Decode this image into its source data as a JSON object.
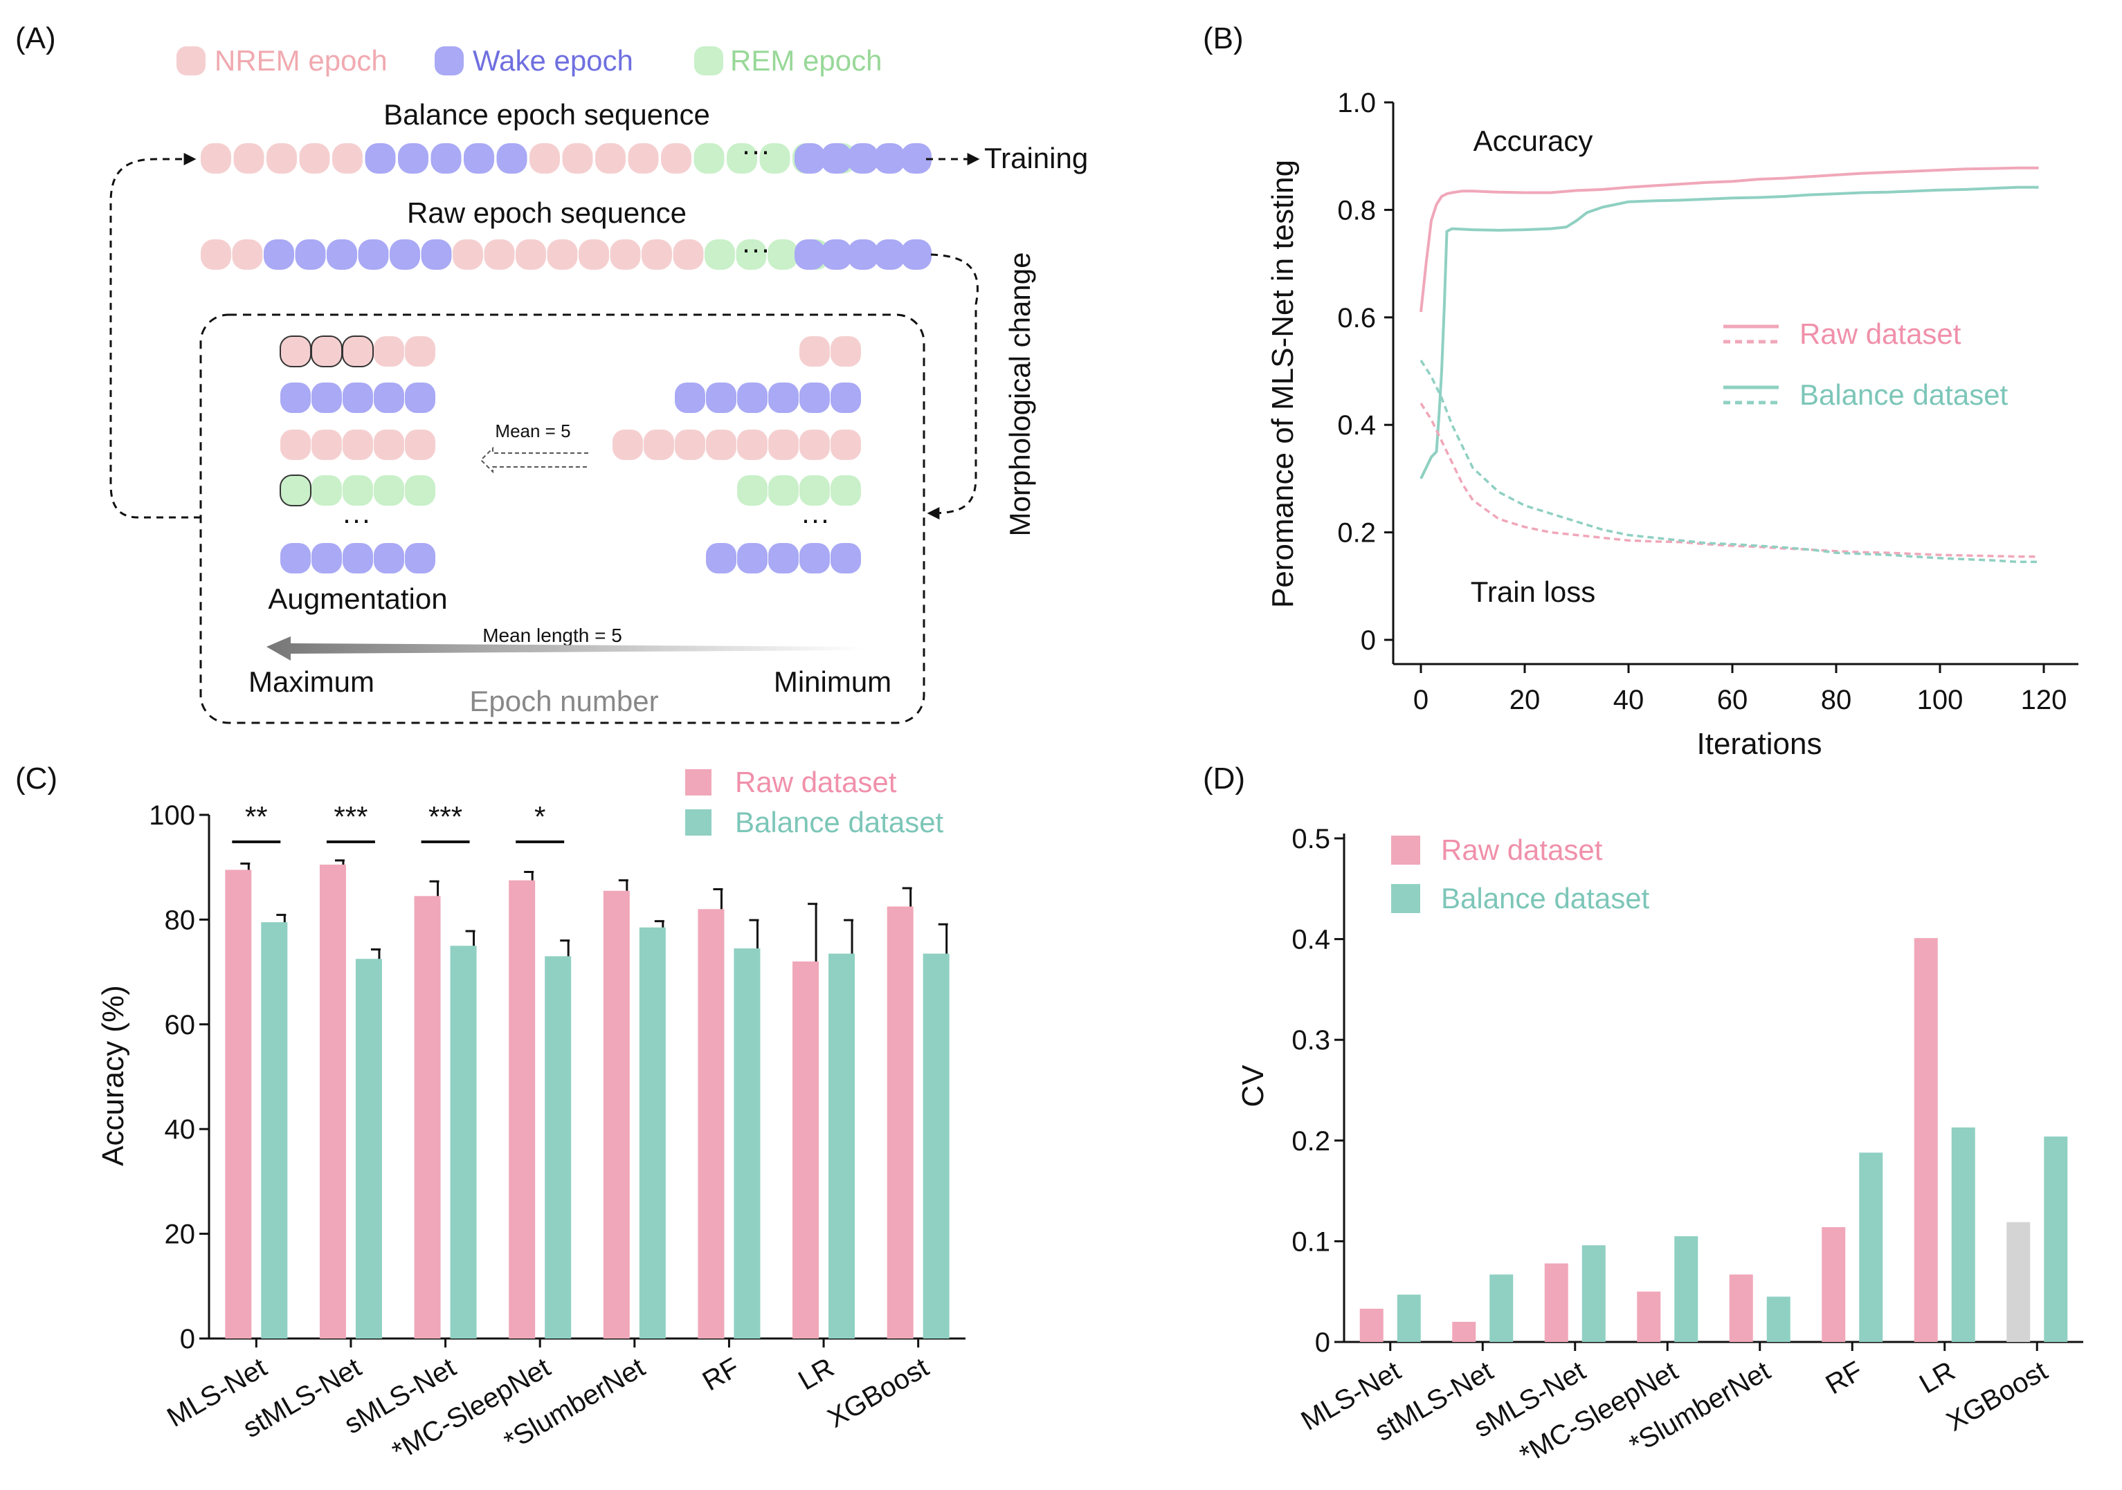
{
  "panels": {
    "a": "(A)",
    "b": "(B)",
    "c": "(C)",
    "d": "(D)"
  },
  "colors": {
    "nrem": "#f5cfd0",
    "wake": "#a9a9f5",
    "rem": "#c9f0c9",
    "raw": "#f0a7b9",
    "balance": "#8fd0c2",
    "gray_bar": "#d4d4d4",
    "legend_nrem_text": "#f0aab0",
    "legend_wake_text": "#6f6fe0",
    "legend_rem_text": "#98d898",
    "raw_text": "#f090aa",
    "balance_text": "#7cc6b8"
  },
  "diagram": {
    "legend": {
      "nrem": "NREM epoch",
      "wake": "Wake epoch",
      "rem": "REM epoch"
    },
    "balance_title": "Balance epoch sequence",
    "raw_title": "Raw epoch sequence",
    "ellipsis": "···",
    "training": "Training",
    "morphological": "Morphological change",
    "mean_label": "Mean = 5",
    "augmentation": "Augmentation",
    "mean_length": "Mean length = 5",
    "maximum": "Maximum",
    "minimum": "Minimum",
    "epoch_number": "Epoch number",
    "balance_sequence": [
      "nrem",
      "nrem",
      "nrem",
      "nrem",
      "nrem",
      "wake",
      "wake",
      "wake",
      "wake",
      "wake",
      "nrem",
      "nrem",
      "nrem",
      "nrem",
      "nrem",
      "rem",
      "rem",
      "rem",
      "rem",
      "rem"
    ],
    "balance_tail": [
      "wake",
      "wake",
      "wake",
      "wake",
      "wake"
    ],
    "raw_sequence": [
      "nrem",
      "nrem",
      "wake",
      "wake",
      "wake",
      "wake",
      "wake",
      "wake",
      "nrem",
      "nrem",
      "nrem",
      "nrem",
      "nrem",
      "nrem",
      "nrem",
      "nrem",
      "rem",
      "rem",
      "rem",
      "rem"
    ],
    "raw_tail": [
      "wake",
      "wake",
      "wake",
      "wake",
      "wake"
    ],
    "aug_left": [
      {
        "type": "nrem",
        "count": 5,
        "outlined": 3
      },
      {
        "type": "wake",
        "count": 5,
        "outlined": 0
      },
      {
        "type": "nrem",
        "count": 5,
        "outlined": 0
      },
      {
        "type": "rem",
        "count": 5,
        "outlined": 1
      },
      {
        "type": "wake",
        "count": 5,
        "outlined": 0
      }
    ],
    "aug_right": [
      {
        "type": "nrem",
        "count": 2
      },
      {
        "type": "wake",
        "count": 6
      },
      {
        "type": "nrem",
        "count": 8
      },
      {
        "type": "rem",
        "count": 4
      },
      {
        "type": "wake",
        "count": 5
      }
    ]
  },
  "chart_data": [
    {
      "id": "B",
      "type": "line",
      "title": "",
      "xlabel": "Iterations",
      "ylabel": "Peromance of MLS-Net in testing",
      "xlim": [
        0,
        120
      ],
      "ylim": [
        0,
        1.0
      ],
      "xticks": [
        "0",
        "20",
        "40",
        "60",
        "80",
        "100",
        "120"
      ],
      "yticks": [
        "0",
        "0.2",
        "0.4",
        "0.6",
        "0.8",
        "1.0"
      ],
      "annotations": {
        "accuracy": "Accuracy",
        "train_loss": "Train loss"
      },
      "legend": [
        "Raw dataset",
        "Balance dataset"
      ],
      "series": [
        {
          "name": "Raw dataset accuracy",
          "style": "solid",
          "color": "raw",
          "x": [
            0,
            1,
            2,
            3,
            4,
            5,
            6,
            8,
            10,
            15,
            20,
            25,
            30,
            35,
            40,
            45,
            50,
            55,
            60,
            65,
            70,
            75,
            80,
            85,
            90,
            95,
            100,
            105,
            110,
            115,
            119
          ],
          "y": [
            0.61,
            0.7,
            0.78,
            0.81,
            0.825,
            0.83,
            0.832,
            0.835,
            0.835,
            0.833,
            0.832,
            0.832,
            0.836,
            0.838,
            0.842,
            0.845,
            0.848,
            0.851,
            0.853,
            0.857,
            0.859,
            0.862,
            0.865,
            0.868,
            0.87,
            0.872,
            0.874,
            0.876,
            0.877,
            0.878,
            0.878
          ]
        },
        {
          "name": "Balance dataset accuracy",
          "style": "solid",
          "color": "balance",
          "x": [
            0,
            1,
            2,
            3,
            3.5,
            4,
            4.5,
            5,
            6,
            10,
            15,
            20,
            25,
            28,
            30,
            32,
            35,
            40,
            45,
            50,
            55,
            60,
            65,
            70,
            75,
            80,
            85,
            90,
            95,
            100,
            105,
            110,
            115,
            119
          ],
          "y": [
            0.3,
            0.32,
            0.34,
            0.35,
            0.42,
            0.5,
            0.62,
            0.76,
            0.765,
            0.763,
            0.762,
            0.763,
            0.765,
            0.768,
            0.78,
            0.795,
            0.805,
            0.815,
            0.817,
            0.818,
            0.82,
            0.822,
            0.823,
            0.825,
            0.828,
            0.83,
            0.832,
            0.833,
            0.835,
            0.837,
            0.838,
            0.84,
            0.842,
            0.842
          ]
        },
        {
          "name": "Raw dataset train loss",
          "style": "dashed",
          "color": "raw",
          "x": [
            0,
            2,
            4,
            6,
            8,
            10,
            15,
            20,
            25,
            30,
            35,
            40,
            45,
            50,
            55,
            60,
            65,
            70,
            75,
            80,
            85,
            90,
            95,
            100,
            105,
            110,
            115,
            119
          ],
          "y": [
            0.44,
            0.41,
            0.37,
            0.33,
            0.29,
            0.26,
            0.225,
            0.21,
            0.2,
            0.195,
            0.19,
            0.185,
            0.183,
            0.182,
            0.178,
            0.175,
            0.173,
            0.17,
            0.168,
            0.165,
            0.163,
            0.162,
            0.16,
            0.158,
            0.157,
            0.156,
            0.155,
            0.155
          ]
        },
        {
          "name": "Balance dataset train loss",
          "style": "dashed",
          "color": "balance",
          "x": [
            0,
            2,
            4,
            6,
            8,
            10,
            15,
            20,
            25,
            30,
            35,
            40,
            45,
            50,
            55,
            60,
            65,
            70,
            75,
            80,
            85,
            90,
            95,
            100,
            105,
            110,
            115,
            119
          ],
          "y": [
            0.52,
            0.49,
            0.45,
            0.4,
            0.36,
            0.32,
            0.275,
            0.25,
            0.235,
            0.22,
            0.205,
            0.195,
            0.19,
            0.185,
            0.18,
            0.178,
            0.175,
            0.172,
            0.168,
            0.162,
            0.16,
            0.158,
            0.155,
            0.152,
            0.15,
            0.148,
            0.145,
            0.145
          ]
        }
      ]
    },
    {
      "id": "C",
      "type": "bar",
      "title": "",
      "xlabel": "",
      "ylabel": "Accuracy (%)",
      "ylim": [
        0,
        100
      ],
      "yticks": [
        "0",
        "20",
        "40",
        "60",
        "80",
        "100"
      ],
      "categories": [
        "MLS-Net",
        "stMLS-Net",
        "sMLS-Net",
        "*MC-SleepNet",
        "*SlumberNet",
        "RF",
        "LR",
        "XGBoost"
      ],
      "series": [
        {
          "name": "Raw dataset",
          "values": [
            89.5,
            90.5,
            84.5,
            87.5,
            85.5,
            82.0,
            72.0,
            82.5
          ],
          "errors": [
            1.2,
            0.8,
            2.8,
            1.6,
            2.0,
            3.8,
            11.0,
            3.5
          ]
        },
        {
          "name": "Balance dataset",
          "values": [
            79.5,
            72.5,
            75.0,
            73.0,
            78.5,
            74.5,
            73.5,
            73.5
          ],
          "errors": [
            1.4,
            1.8,
            2.8,
            3.0,
            1.2,
            5.4,
            6.4,
            5.6
          ]
        }
      ],
      "significance": [
        "**",
        "***",
        "***",
        "*",
        "",
        "",
        "",
        ""
      ],
      "legend": [
        "Raw dataset",
        "Balance dataset"
      ]
    },
    {
      "id": "D",
      "type": "bar",
      "title": "",
      "xlabel": "",
      "ylabel": "CV",
      "ylim": [
        0,
        0.5
      ],
      "yticks": [
        "0",
        "0.1",
        "0.2",
        "0.3",
        "0.4",
        "0.5"
      ],
      "categories": [
        "MLS-Net",
        "stMLS-Net",
        "sMLS-Net",
        "*MC-SleepNet",
        "*SlumberNet",
        "RF",
        "LR",
        "XGBoost"
      ],
      "series": [
        {
          "name": "Raw dataset",
          "values": [
            0.033,
            0.02,
            0.078,
            0.05,
            0.067,
            0.114,
            0.401,
            0.119
          ]
        },
        {
          "name": "Balance dataset",
          "values": [
            0.047,
            0.067,
            0.096,
            0.105,
            0.045,
            0.188,
            0.213,
            0.204
          ]
        }
      ],
      "highlight_gray": [
        7
      ],
      "legend": [
        "Raw dataset",
        "Balance dataset"
      ]
    }
  ]
}
